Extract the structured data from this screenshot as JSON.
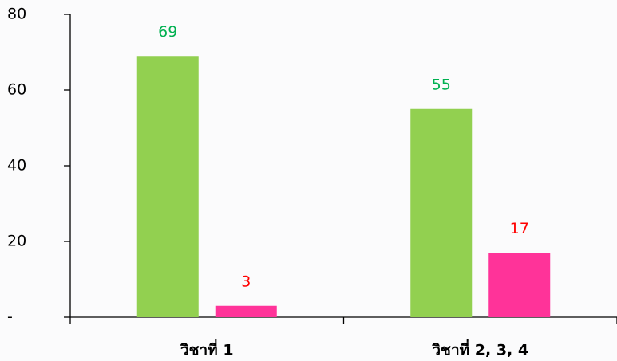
{
  "chart_data": {
    "type": "bar",
    "categories": [
      "วิชาที่ 1",
      "วิชาที่ 2, 3, 4"
    ],
    "series": [
      {
        "color": "#92d050",
        "label_color": "#00b050",
        "values": [
          69,
          55
        ]
      },
      {
        "color": "#ff3399",
        "label_color": "#ff0000",
        "values": [
          3,
          17
        ]
      }
    ],
    "ylim": [
      0,
      80
    ],
    "yticks": [
      {
        "value": 0,
        "label": "-"
      },
      20,
      40,
      60,
      80
    ]
  }
}
